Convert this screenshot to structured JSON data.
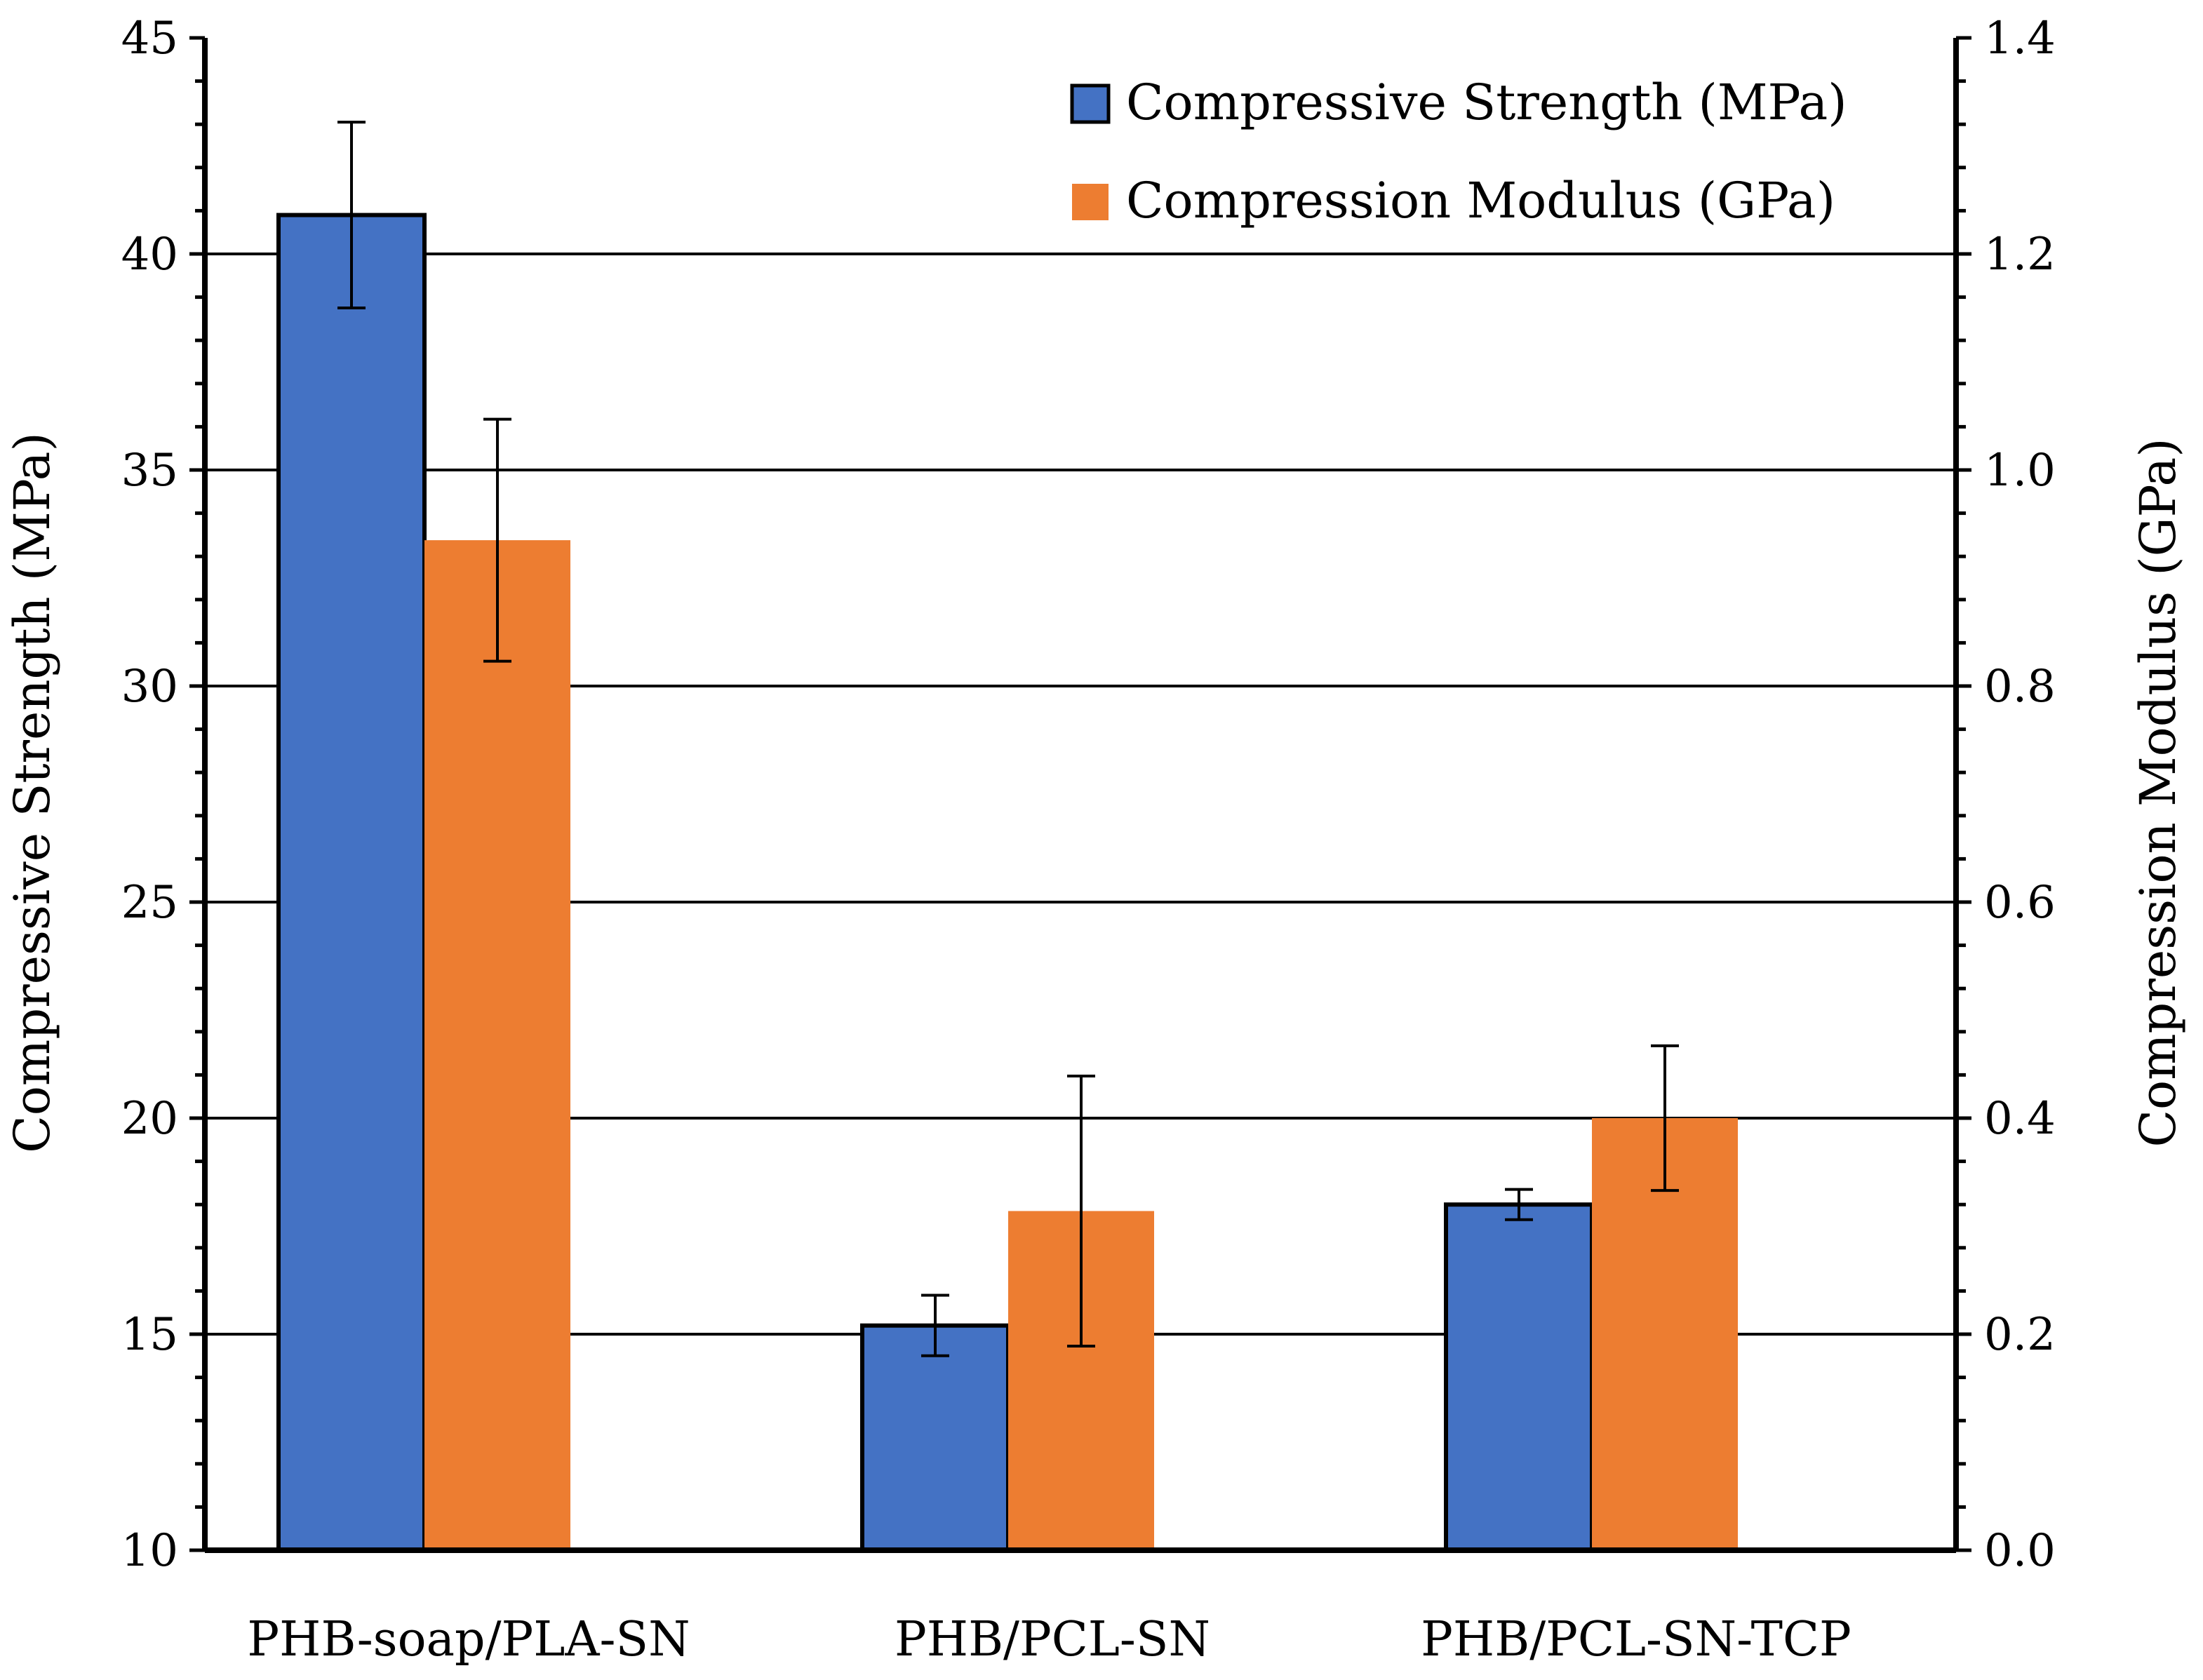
{
  "chart_data": {
    "type": "bar",
    "categories": [
      "PHB-soap/PLA-SN",
      "PHB/PCL-SN",
      "PHB/PCL-SN-TCP"
    ],
    "series": [
      {
        "name": "Compressive Strength (MPa)",
        "axis": "left",
        "color": "#4472C4",
        "values": [
          40.9,
          15.2,
          18.0
        ],
        "error": [
          2.15,
          0.7,
          0.35
        ]
      },
      {
        "name": "Compression Modulus (GPa)",
        "axis": "right",
        "color": "#ED7D31",
        "values": [
          0.935,
          0.314,
          0.4
        ],
        "error": [
          0.112,
          0.125,
          0.067
        ]
      }
    ],
    "ylabel": "Compressive Strength (MPa)",
    "y2label": "Compression Modulus (GPa)",
    "ylim": [
      10,
      45
    ],
    "y2lim": [
      0.0,
      1.4
    ],
    "yticks": [
      "10",
      "15",
      "20",
      "25",
      "30",
      "35",
      "40",
      "45"
    ],
    "y2ticks": [
      "0.0",
      "0.2",
      "0.4",
      "0.6",
      "0.8",
      "1.0",
      "1.2",
      "1.4"
    ],
    "grid": true,
    "legend": "top-right"
  }
}
